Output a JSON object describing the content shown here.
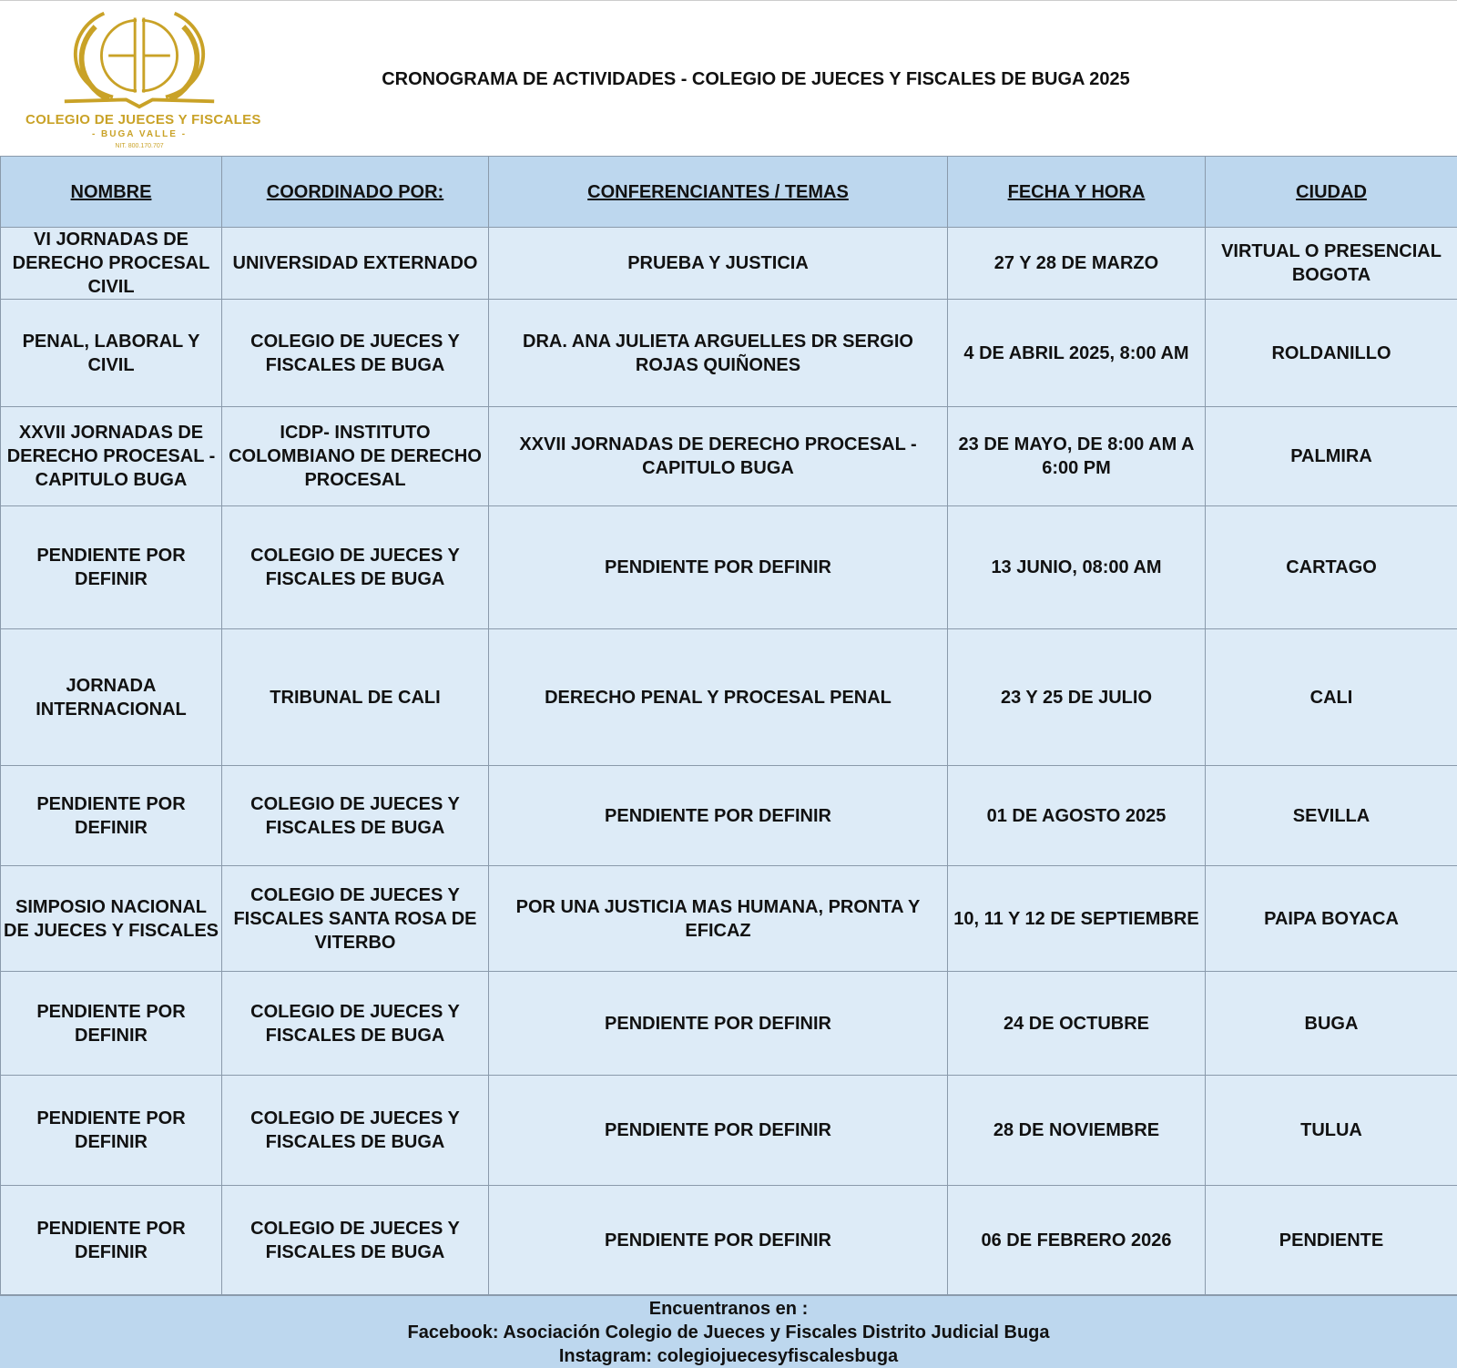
{
  "logo": {
    "text": "COLEGIO DE JUECES Y FISCALES",
    "sub": "- BUGA VALLE -",
    "nit": "NIT. 800.170.707",
    "color": "#c9a227"
  },
  "title": "CRONOGRAMA DE ACTIVIDADES - COLEGIO DE JUECES Y FISCALES DE BUGA 2025",
  "table": {
    "headers": [
      "NOMBRE",
      "COORDINADO POR:",
      "CONFERENCIANTES / TEMAS",
      "FECHA Y HORA",
      "CIUDAD"
    ],
    "rows": [
      [
        "VI JORNADAS DE DERECHO PROCESAL CIVIL",
        "UNIVERSIDAD EXTERNADO",
        "PRUEBA Y JUSTICIA",
        "27 Y 28 DE MARZO",
        "VIRTUAL O PRESENCIAL BOGOTA"
      ],
      [
        "PENAL, LABORAL Y CIVIL",
        "COLEGIO DE JUECES Y FISCALES DE BUGA",
        "DRA. ANA JULIETA ARGUELLES DR SERGIO ROJAS QUIÑONES",
        "4 DE ABRIL 2025, 8:00 AM",
        "ROLDANILLO"
      ],
      [
        "XXVII JORNADAS DE DERECHO PROCESAL - CAPITULO BUGA",
        "ICDP- INSTITUTO COLOMBIANO DE DERECHO PROCESAL",
        "XXVII JORNADAS DE DERECHO PROCESAL - CAPITULO BUGA",
        "23 DE MAYO, DE 8:00 AM A 6:00 PM",
        "PALMIRA"
      ],
      [
        "PENDIENTE POR DEFINIR",
        "COLEGIO DE JUECES Y FISCALES DE BUGA",
        "PENDIENTE POR DEFINIR",
        "13 JUNIO, 08:00 AM",
        "CARTAGO"
      ],
      [
        "JORNADA INTERNACIONAL",
        "TRIBUNAL DE CALI",
        "DERECHO PENAL Y PROCESAL PENAL",
        "23 Y 25 DE JULIO",
        "CALI"
      ],
      [
        "PENDIENTE POR DEFINIR",
        "COLEGIO DE JUECES Y FISCALES DE BUGA",
        "PENDIENTE POR DEFINIR",
        "01 DE AGOSTO 2025",
        "SEVILLA"
      ],
      [
        "SIMPOSIO NACIONAL DE JUECES Y FISCALES",
        "COLEGIO DE JUECES Y FISCALES SANTA ROSA DE VITERBO",
        "POR UNA JUSTICIA MAS HUMANA, PRONTA Y EFICAZ",
        "10, 11 Y 12 DE SEPTIEMBRE",
        "PAIPA BOYACA"
      ],
      [
        "PENDIENTE POR DEFINIR",
        "COLEGIO DE JUECES Y FISCALES DE BUGA",
        "PENDIENTE POR DEFINIR",
        "24 DE OCTUBRE",
        "BUGA"
      ],
      [
        "PENDIENTE POR DEFINIR",
        "COLEGIO DE JUECES Y FISCALES DE BUGA",
        "PENDIENTE POR DEFINIR",
        "28 DE NOVIEMBRE",
        "TULUA"
      ],
      [
        "PENDIENTE POR DEFINIR",
        "COLEGIO DE JUECES Y FISCALES DE BUGA",
        "PENDIENTE POR DEFINIR",
        "06 DE FEBRERO 2026",
        "PENDIENTE"
      ]
    ]
  },
  "footer": {
    "line1": "Encuentranos en :",
    "line2": "Facebook: Asociación Colegio de Jueces y Fiscales Distrito Judicial Buga",
    "line3": "Instagram: colegiojuecesyfiscalesbuga"
  }
}
